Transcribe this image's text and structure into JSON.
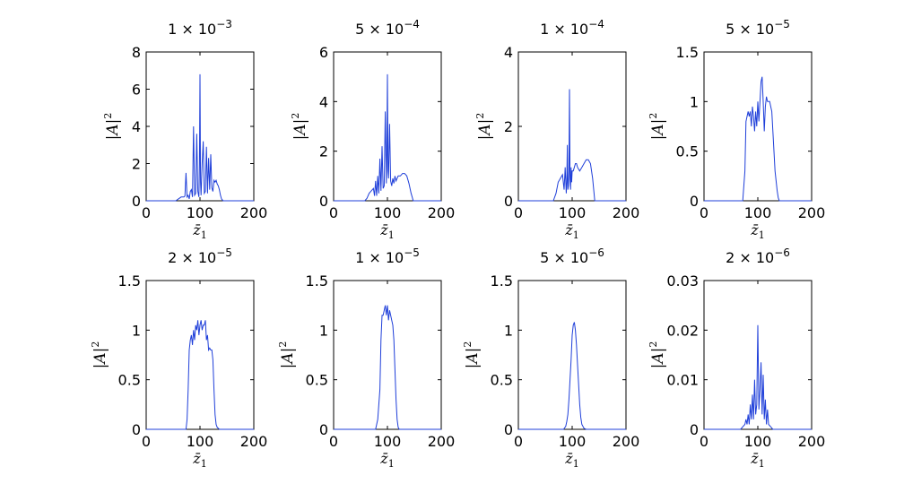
{
  "chart_data": [
    {
      "type": "line",
      "title": "1 × 10^-3",
      "title_base": "1 × 10",
      "title_exp": "−3",
      "xlabel": "z̄1",
      "ylabel": "|A|2",
      "xlim": [
        0,
        200
      ],
      "ylim": [
        0,
        8
      ],
      "xticks": [
        "0",
        "100",
        "200"
      ],
      "yticks": [
        "0",
        "2",
        "4",
        "6",
        "8"
      ],
      "series": [
        {
          "name": "|A|^2",
          "x": [
            55,
            65,
            70,
            72,
            74,
            76,
            78,
            80,
            82,
            84,
            86,
            88,
            90,
            92,
            94,
            96,
            98,
            99,
            100,
            101,
            102,
            104,
            106,
            108,
            110,
            112,
            114,
            116,
            118,
            120,
            122,
            124,
            126,
            128,
            130,
            132,
            134,
            136,
            138,
            140,
            143
          ],
          "y": [
            0,
            0.2,
            0.2,
            0.25,
            1.5,
            0.2,
            0.3,
            0.1,
            0.5,
            0.6,
            0.2,
            4.0,
            0.3,
            0.4,
            3.6,
            0.5,
            0.2,
            2.0,
            6.8,
            1.0,
            0.3,
            2.0,
            3.2,
            0.4,
            0.5,
            2.9,
            0.4,
            2.3,
            0.6,
            2.5,
            0.7,
            0.5,
            1.1,
            1.0,
            1.1,
            0.9,
            0.8,
            0.6,
            0.3,
            0.1,
            0
          ]
        }
      ]
    },
    {
      "type": "line",
      "title": "5 × 10^-4",
      "title_base": "5 × 10",
      "title_exp": "−4",
      "xlabel": "z̄1",
      "ylabel": "|A|2",
      "xlim": [
        0,
        200
      ],
      "ylim": [
        0,
        6
      ],
      "xticks": [
        "0",
        "100",
        "200"
      ],
      "yticks": [
        "0",
        "2",
        "4",
        "6"
      ],
      "series": [
        {
          "name": "|A|^2",
          "x": [
            58,
            62,
            66,
            70,
            74,
            76,
            78,
            80,
            82,
            84,
            86,
            88,
            90,
            92,
            94,
            96,
            98,
            99,
            100,
            101,
            102,
            104,
            106,
            108,
            110,
            112,
            114,
            116,
            118,
            120,
            124,
            128,
            132,
            136,
            140,
            144,
            148
          ],
          "y": [
            0,
            0.1,
            0.3,
            0.4,
            0.5,
            0.2,
            0.8,
            0.2,
            1.0,
            0.3,
            1.7,
            0.4,
            2.2,
            0.5,
            0.6,
            3.6,
            0.7,
            2.0,
            5.1,
            1.2,
            0.9,
            3.1,
            0.8,
            0.6,
            0.9,
            0.7,
            1.0,
            0.8,
            0.9,
            1.0,
            1.0,
            1.1,
            1.1,
            1.0,
            0.7,
            0.3,
            0
          ]
        }
      ]
    },
    {
      "type": "line",
      "title": "1 × 10^-4",
      "title_base": "1 × 10",
      "title_exp": "−4",
      "xlabel": "z̄1",
      "ylabel": "|A|2",
      "xlim": [
        0,
        200
      ],
      "ylim": [
        0,
        4
      ],
      "xticks": [
        "0",
        "100",
        "200"
      ],
      "yticks": [
        "0",
        "2",
        "4"
      ],
      "series": [
        {
          "name": "|A|^2",
          "x": [
            65,
            70,
            74,
            78,
            82,
            85,
            87,
            89,
            90,
            91,
            92,
            93,
            94,
            95,
            96,
            97,
            98,
            99,
            100,
            102,
            104,
            106,
            108,
            110,
            114,
            118,
            122,
            126,
            130,
            134,
            138,
            142
          ],
          "y": [
            0,
            0.2,
            0.5,
            0.6,
            0.7,
            0.3,
            0.9,
            0.2,
            0.5,
            1.5,
            0.3,
            0.4,
            0.8,
            3.0,
            0.6,
            0.3,
            0.9,
            0.5,
            0.8,
            0.8,
            0.9,
            1.0,
            1.0,
            0.9,
            0.8,
            0.9,
            1.0,
            1.1,
            1.1,
            1.0,
            0.6,
            0
          ]
        }
      ]
    },
    {
      "type": "line",
      "title": "5 × 10^-5",
      "title_base": "5 × 10",
      "title_exp": "−5",
      "xlabel": "z̄1",
      "ylabel": "|A|2",
      "xlim": [
        0,
        200
      ],
      "ylim": [
        0,
        1.5
      ],
      "xticks": [
        "0",
        "100",
        "200"
      ],
      "yticks": [
        "0",
        "0.5",
        "1",
        "1.5"
      ],
      "series": [
        {
          "name": "|A|^2",
          "x": [
            72,
            76,
            78,
            80,
            82,
            84,
            86,
            88,
            90,
            92,
            94,
            96,
            98,
            100,
            102,
            104,
            106,
            108,
            110,
            112,
            114,
            116,
            118,
            120,
            122,
            124,
            126,
            128,
            130,
            132,
            134,
            136,
            138,
            140
          ],
          "y": [
            0,
            0.3,
            0.8,
            0.85,
            0.9,
            0.85,
            0.9,
            0.75,
            0.95,
            0.85,
            0.7,
            0.9,
            0.75,
            1.0,
            0.8,
            1.0,
            1.2,
            1.25,
            1.0,
            0.7,
            0.95,
            1.05,
            1.0,
            1.0,
            1.0,
            0.95,
            0.9,
            0.7,
            0.5,
            0.3,
            0.2,
            0.1,
            0.03,
            0
          ]
        }
      ]
    },
    {
      "type": "line",
      "title": "2 × 10^-5",
      "title_base": "2 × 10",
      "title_exp": "−5",
      "xlabel": "z̄1",
      "ylabel": "|A|2",
      "xlim": [
        0,
        200
      ],
      "ylim": [
        0,
        1.5
      ],
      "xticks": [
        "0",
        "100",
        "200"
      ],
      "yticks": [
        "0",
        "0.5",
        "1",
        "1.5"
      ],
      "series": [
        {
          "name": "|A|^2",
          "x": [
            74,
            76,
            78,
            80,
            82,
            84,
            86,
            88,
            90,
            92,
            94,
            96,
            98,
            100,
            102,
            104,
            106,
            108,
            110,
            112,
            114,
            116,
            118,
            120,
            122,
            124,
            126,
            128,
            130,
            132,
            134,
            136
          ],
          "y": [
            0,
            0.1,
            0.4,
            0.8,
            0.9,
            0.95,
            0.85,
            1.0,
            0.9,
            1.05,
            1.0,
            1.1,
            0.95,
            1.05,
            1.1,
            1.0,
            1.05,
            1.05,
            1.1,
            0.9,
            0.95,
            0.8,
            0.82,
            0.8,
            0.8,
            0.7,
            0.4,
            0.15,
            0.05,
            0.02,
            0.01,
            0
          ]
        }
      ]
    },
    {
      "type": "line",
      "title": "1 × 10^-5",
      "title_base": "1 × 10",
      "title_exp": "−5",
      "xlabel": "z̄1",
      "ylabel": "|A|2",
      "xlim": [
        0,
        200
      ],
      "ylim": [
        0,
        1.5
      ],
      "xticks": [
        "0",
        "100",
        "200"
      ],
      "yticks": [
        "0",
        "0.5",
        "1",
        "1.5"
      ],
      "series": [
        {
          "name": "|A|^2",
          "x": [
            78,
            80,
            82,
            84,
            86,
            88,
            90,
            92,
            94,
            96,
            98,
            100,
            102,
            104,
            106,
            108,
            110,
            112,
            114,
            116,
            118,
            120,
            122
          ],
          "y": [
            0,
            0.05,
            0.1,
            0.25,
            0.4,
            0.9,
            1.15,
            1.15,
            1.2,
            1.25,
            1.15,
            1.25,
            1.1,
            1.2,
            1.15,
            1.1,
            1.05,
            0.9,
            0.6,
            0.3,
            0.1,
            0.02,
            0
          ]
        }
      ]
    },
    {
      "type": "line",
      "title": "5 × 10^-6",
      "title_base": "5 × 10",
      "title_exp": "−6",
      "xlabel": "z̄1",
      "ylabel": "|A|2",
      "xlim": [
        0,
        200
      ],
      "ylim": [
        0,
        1.5
      ],
      "xticks": [
        "0",
        "100",
        "200"
      ],
      "yticks": [
        "0",
        "0.5",
        "1",
        "1.5"
      ],
      "series": [
        {
          "name": "|A|^2",
          "x": [
            84,
            88,
            90,
            92,
            94,
            96,
            98,
            100,
            102,
            104,
            106,
            108,
            110,
            112,
            114,
            116,
            118,
            122,
            126
          ],
          "y": [
            0,
            0.03,
            0.08,
            0.15,
            0.3,
            0.5,
            0.7,
            0.95,
            1.05,
            1.08,
            1.0,
            0.85,
            0.65,
            0.45,
            0.25,
            0.12,
            0.05,
            0.01,
            0
          ]
        }
      ]
    },
    {
      "type": "line",
      "title": "2 × 10^-6",
      "title_base": "2 × 10",
      "title_exp": "−6",
      "xlabel": "z̄1",
      "ylabel": "|A|2",
      "xlim": [
        0,
        200
      ],
      "ylim": [
        0,
        0.03
      ],
      "xticks": [
        "0",
        "100",
        "200"
      ],
      "yticks": [
        "0",
        "0.01",
        "0.02",
        "0.03"
      ],
      "series": [
        {
          "name": "|A|^2",
          "x": [
            68,
            72,
            76,
            78,
            80,
            82,
            84,
            86,
            88,
            90,
            92,
            94,
            96,
            98,
            100,
            102,
            104,
            106,
            108,
            110,
            112,
            114,
            116,
            118,
            120,
            124,
            128
          ],
          "y": [
            0,
            0.0005,
            0.001,
            0.002,
            0.001,
            0.003,
            0.001,
            0.005,
            0.002,
            0.007,
            0.002,
            0.01,
            0.003,
            0.005,
            0.021,
            0.004,
            0.008,
            0.0135,
            0.003,
            0.011,
            0.002,
            0.006,
            0.001,
            0.004,
            0.001,
            0.0005,
            0
          ]
        }
      ]
    }
  ]
}
